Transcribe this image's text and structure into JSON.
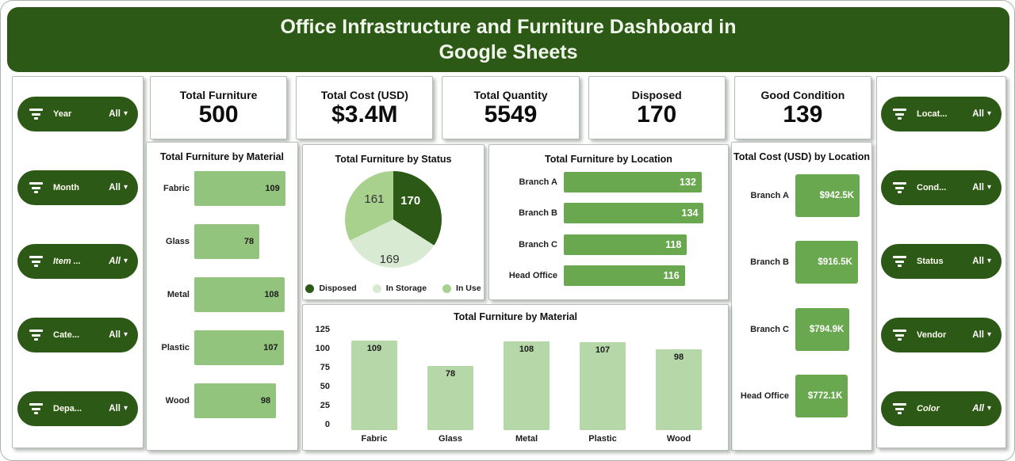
{
  "header": {
    "title": "Office Infrastructure and Furniture Dashboard in Google Sheets"
  },
  "colors": {
    "header_green": "#2d5916",
    "pill_green": "#2d5916",
    "bar_green_medium": "#6aa84f",
    "bar_green_light1": "#93c47d",
    "bar_green_light2": "#b6d7a8",
    "pie_dark_green": "#2d5916",
    "pie_pale_green": "#d9ead3",
    "pie_soft_green": "#a9d18e"
  },
  "filters_left": [
    {
      "label": "Year",
      "value": "All",
      "italic": false
    },
    {
      "label": "Month",
      "value": "All",
      "italic": false
    },
    {
      "label": "Item ...",
      "value": "All",
      "italic": true
    },
    {
      "label": "Cate...",
      "value": "All",
      "italic": false
    },
    {
      "label": "Depa...",
      "value": "All",
      "italic": false
    }
  ],
  "filters_right": [
    {
      "label": "Locat...",
      "value": "All",
      "italic": false
    },
    {
      "label": "Cond...",
      "value": "All",
      "italic": false
    },
    {
      "label": "Status",
      "value": "All",
      "italic": false
    },
    {
      "label": "Vendor",
      "value": "All",
      "italic": false
    },
    {
      "label": "Color",
      "value": "All",
      "italic": true
    }
  ],
  "kpis": [
    {
      "label": "Total Furniture",
      "value": "500"
    },
    {
      "label": "Total Cost (USD)",
      "value": "$3.4M"
    },
    {
      "label": "Total Quantity",
      "value": "5549"
    },
    {
      "label": "Disposed",
      "value": "170"
    },
    {
      "label": "Good Condition",
      "value": "139"
    }
  ],
  "chart_data": [
    {
      "id": "material_h",
      "type": "bar",
      "orientation": "horizontal",
      "title": "Total Furniture by Material",
      "categories": [
        "Fabric",
        "Glass",
        "Metal",
        "Plastic",
        "Wood"
      ],
      "values": [
        109,
        78,
        108,
        107,
        98
      ],
      "xlim": [
        0,
        114
      ],
      "bar_color": "#93c47d",
      "value_label_color": "#1c1c1c",
      "grid": false,
      "legend_position": "none"
    },
    {
      "id": "status_pie",
      "type": "pie",
      "title": "Total Furniture by Status",
      "labels": [
        "Disposed",
        "In Storage",
        "In Use"
      ],
      "values": [
        170,
        169,
        161
      ],
      "colors": [
        "#2d5916",
        "#d9ead3",
        "#a9d18e"
      ],
      "start_angle_deg": 0,
      "direction": "clockwise",
      "legend_position": "bottom"
    },
    {
      "id": "location",
      "type": "bar",
      "orientation": "horizontal",
      "title": "Total Furniture by Location",
      "categories": [
        "Branch A",
        "Branch B",
        "Branch C",
        "Head Office"
      ],
      "values": [
        132,
        134,
        118,
        116
      ],
      "xlim": [
        0,
        139
      ],
      "bar_color": "#6aa84f",
      "value_label_color": "#ffffff",
      "grid": false,
      "legend_position": "none"
    },
    {
      "id": "cost_location",
      "type": "bar",
      "orientation": "horizontal",
      "title": "Total Cost (USD) by Location",
      "categories": [
        "Branch A",
        "Branch B",
        "Branch C",
        "Head Office"
      ],
      "values": [
        942.5,
        916.5,
        794.9,
        772.1
      ],
      "value_labels": [
        "$942.5K",
        "$916.5K",
        "$794.9K",
        "$772.1K"
      ],
      "unit": "USD thousands",
      "xlim": [
        0,
        1000
      ],
      "bar_color": "#6aa84f",
      "value_label_color": "#ffffff",
      "grid": false,
      "legend_position": "none"
    },
    {
      "id": "material_v",
      "type": "bar",
      "orientation": "vertical",
      "title": "Total Furniture by Material",
      "categories": [
        "Fabric",
        "Glass",
        "Metal",
        "Plastic",
        "Wood"
      ],
      "values": [
        109,
        78,
        108,
        107,
        98
      ],
      "ylim": [
        0,
        125
      ],
      "yticks": [
        0,
        25,
        50,
        75,
        100,
        125
      ],
      "bar_color": "#b6d7a8",
      "value_label_color": "#1c1c1c",
      "grid": false,
      "legend_position": "none"
    }
  ]
}
